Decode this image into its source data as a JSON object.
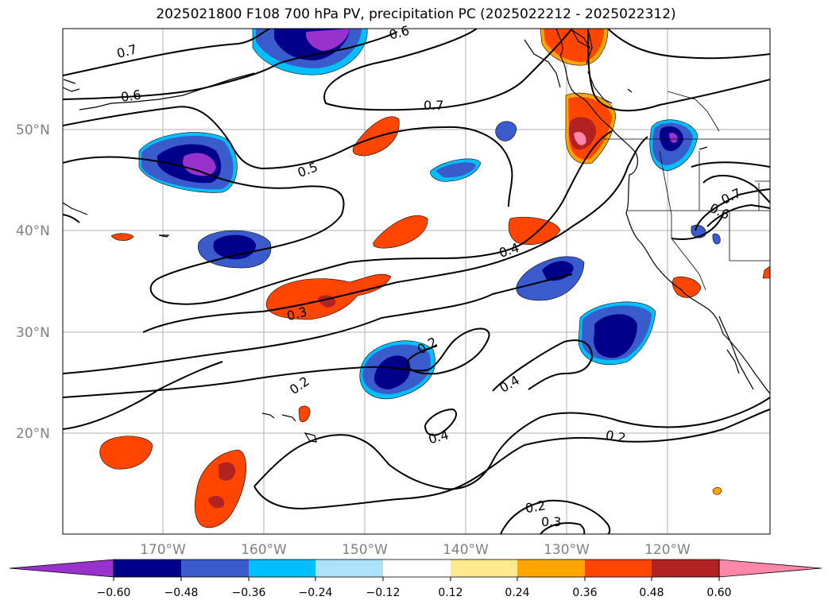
{
  "title": "2025021800 F108 700 hPa PV, precipitation PC (2025022212 - 2025022312)",
  "lat_labels": [
    "50°N",
    "40°N",
    "30°N",
    "20°N"
  ],
  "lon_labels": [
    "170°W",
    "160°W",
    "150°W",
    "140°W",
    "130°W",
    "120°W"
  ],
  "contour_labels": [
    "0.7",
    "0.6",
    "0.6",
    "0.7",
    "0.5",
    "0.4",
    "0.3",
    "0.2",
    "0.2",
    "0.4",
    "0.4",
    "0.2",
    "0.2",
    "0.3",
    "0.7",
    "0.6"
  ],
  "colorbar": {
    "ticks": [
      "−0.60",
      "−0.48",
      "−0.36",
      "−0.24",
      "−0.12",
      "0.12",
      "0.24",
      "0.36",
      "0.48",
      "0.60"
    ],
    "colors": [
      "#9932CC",
      "#00008B",
      "#3A5BCB",
      "#00BFFF",
      "#ADE3FA",
      "#FFFFFF",
      "#FFE98F",
      "#FFA500",
      "#FF4500",
      "#B22222",
      "#FF88AA"
    ]
  },
  "palette": {
    "dark_purple": "#9932CC",
    "navy": "#00008B",
    "royal_blue": "#3A5BCB",
    "sky_blue": "#00BFFF",
    "light_blue": "#ADE3FA",
    "yellow": "#FFE98F",
    "orange": "#FFA500",
    "orangered": "#FF4500",
    "firebrick": "#B22222",
    "pink": "#FF88AA",
    "gridline": "#B0B0B0",
    "label_gray": "#808080"
  }
}
